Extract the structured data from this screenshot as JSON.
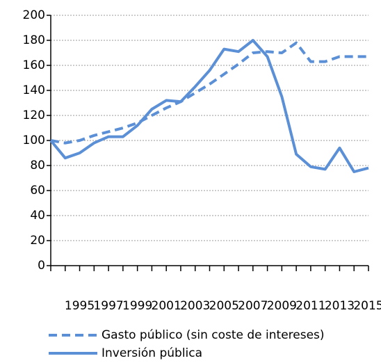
{
  "chart_data": {
    "type": "line",
    "categories": [
      null,
      null,
      "1995",
      null,
      "1997",
      null,
      "1999",
      null,
      "2001",
      null,
      "2003",
      null,
      "2005",
      null,
      "2007",
      null,
      "2009",
      null,
      "2011",
      null,
      "2013",
      null,
      "2015"
    ],
    "series": [
      {
        "name": "Gasto público (sin coste de intereses)",
        "color": "#5b8fd6",
        "dash": true,
        "values": [
          100,
          98,
          100,
          104,
          107,
          110,
          114,
          120,
          126,
          131,
          138,
          145,
          153,
          161,
          170,
          171,
          170,
          178,
          163,
          163,
          167,
          167,
          167
        ]
      },
      {
        "name": "Inversión pública",
        "color": "#5b8fd6",
        "dash": false,
        "values": [
          100,
          86,
          90,
          98,
          103,
          103,
          112,
          125,
          132,
          131,
          143,
          156,
          173,
          171,
          180,
          167,
          135,
          89,
          79,
          77,
          94,
          75,
          78
        ]
      }
    ],
    "ylim": [
      0,
      200
    ],
    "yticks": [
      0,
      20,
      40,
      60,
      80,
      100,
      120,
      140,
      160,
      180,
      200
    ],
    "grid": true
  }
}
